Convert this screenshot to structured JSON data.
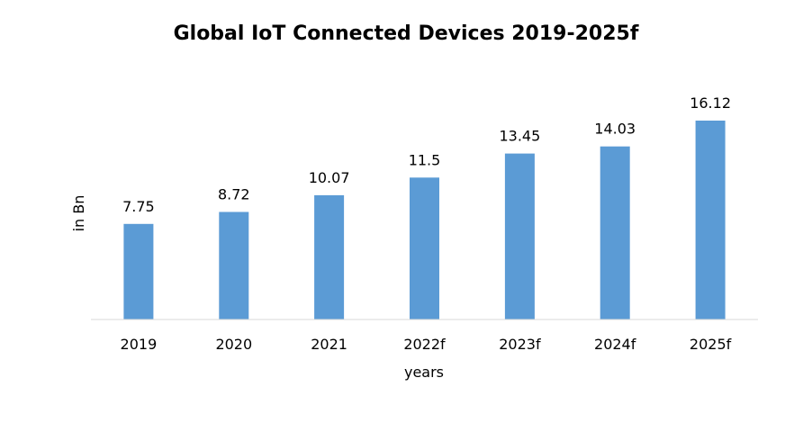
{
  "chart_data": {
    "type": "bar",
    "title": "Global IoT Connected Devices 2019-2025f",
    "xlabel": "years",
    "ylabel": "in Bn",
    "categories": [
      "2019",
      "2020",
      "2021",
      "2022f",
      "2023f",
      "2024f",
      "2025f"
    ],
    "values": [
      7.75,
      8.72,
      10.07,
      11.5,
      13.45,
      14.03,
      16.12
    ],
    "data_labels": [
      "7.75",
      "8.72",
      "10.07",
      "11.5",
      "13.45",
      "14.03",
      "16.12"
    ],
    "ylim": [
      0,
      16.12
    ],
    "grid": false,
    "legend": "none",
    "bar_color": "#5B9BD5",
    "axis_color": "#D9D9D9"
  }
}
